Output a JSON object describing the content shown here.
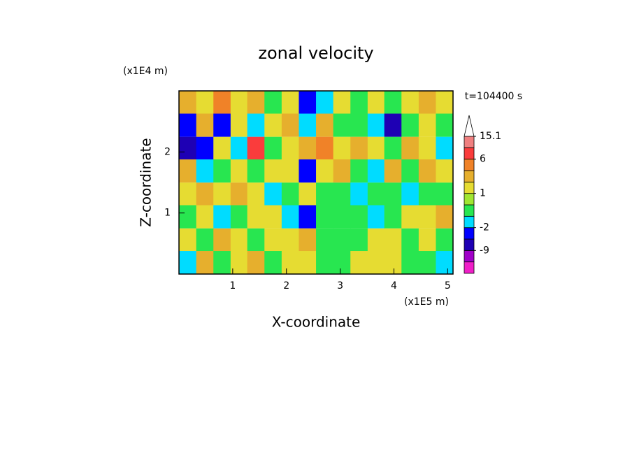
{
  "chart_data": {
    "type": "contour",
    "title": "zonal velocity",
    "x_label": "X-coordinate",
    "y_label": "Z-coordinate",
    "x_unit": "(x1E5 m)",
    "y_unit": "(x1E4 m)",
    "time_label": "t=104400 s",
    "x": [
      0.16,
      0.48,
      0.8,
      1.12,
      1.43,
      1.75,
      2.07,
      2.39,
      2.71,
      3.03,
      3.35,
      3.67,
      3.98,
      4.3,
      4.62,
      4.94
    ],
    "y": [
      2.81,
      2.44,
      2.06,
      1.69,
      1.31,
      0.94,
      0.56,
      0.19
    ],
    "z": [
      [
        3,
        1.5,
        5,
        1.5,
        3,
        -0.5,
        1.5,
        -3,
        -1.5,
        1.5,
        -0.5,
        1.5,
        -0.5,
        1.5,
        3,
        1.5
      ],
      [
        -3,
        3,
        -3,
        1.5,
        -1.5,
        1.5,
        3,
        -1.5,
        3,
        -0.5,
        -0.5,
        -1.5,
        -7,
        -0.5,
        1.5,
        -0.5
      ],
      [
        -7,
        -3,
        1.5,
        -1.5,
        7,
        -0.5,
        1.5,
        3,
        5,
        1.5,
        3,
        1.5,
        -0.5,
        3,
        1.5,
        -1.5
      ],
      [
        3,
        -1.5,
        -0.5,
        1.5,
        -0.5,
        1.5,
        1.5,
        -3,
        1.5,
        3,
        -0.5,
        -1.5,
        3,
        -0.5,
        3,
        1.5
      ],
      [
        1.5,
        3,
        1.5,
        3,
        1.5,
        -1.5,
        -0.5,
        1.5,
        -0.5,
        -0.5,
        -1.5,
        -0.5,
        -0.5,
        -1.5,
        -0.5,
        -0.5
      ],
      [
        -0.5,
        1.5,
        -1.5,
        -0.5,
        1.5,
        1.5,
        -1.5,
        -3,
        -0.5,
        -0.5,
        -0.5,
        -1.5,
        -0.5,
        1.5,
        1.5,
        3
      ],
      [
        1.5,
        -0.5,
        3,
        1.5,
        -0.5,
        1.5,
        1.5,
        3,
        -0.5,
        -0.5,
        -0.5,
        1.5,
        1.5,
        -0.5,
        1.5,
        -0.5
      ],
      [
        -1.5,
        3,
        -0.5,
        1.5,
        3,
        -0.5,
        1.5,
        1.5,
        -0.5,
        -0.5,
        1.5,
        1.5,
        1.5,
        -0.5,
        -0.5,
        -1.5
      ]
    ],
    "xlim": [
      0,
      5.1
    ],
    "ylim": [
      0,
      3.0
    ],
    "xticks": [
      1,
      2,
      3,
      4,
      5
    ],
    "yticks": [
      1,
      2
    ],
    "levels": [
      -12,
      -9,
      -6,
      -2,
      -1,
      0,
      1,
      2,
      4,
      6,
      10,
      15.1
    ],
    "colors": [
      "#f01ec8",
      "#a000c8",
      "#1e00b4",
      "#0000ff",
      "#00dcff",
      "#28e650",
      "#a0e632",
      "#e6dc32",
      "#e6af2d",
      "#f08228",
      "#fa3c3c",
      "#f08080",
      "#ffffff"
    ],
    "colorbar_ticks": [
      15.1,
      6,
      1,
      -2,
      -9
    ]
  }
}
